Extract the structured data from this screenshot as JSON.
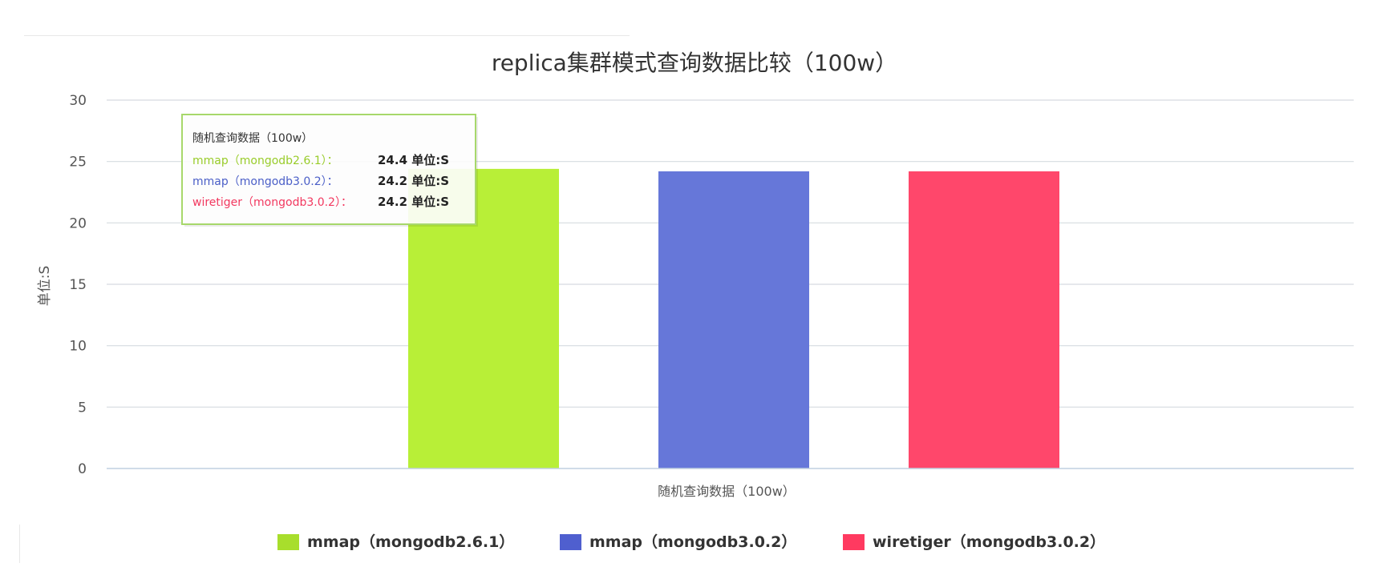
{
  "chart_data": {
    "type": "bar",
    "title": "replica集群模式查询数据比较（100w）",
    "ylabel": "单位:S",
    "xlabel": "",
    "categories": [
      "随机查询数据（100w）"
    ],
    "ylim": [
      0,
      30
    ],
    "yticks": [
      0,
      5,
      10,
      15,
      20,
      25,
      30
    ],
    "grid": true,
    "legend_position": "bottom-center",
    "series": [
      {
        "name": "mmap（mongodb2.6.1）",
        "values": [
          24.4
        ],
        "color": "#b8ef37",
        "legend_color": "#a8de2c"
      },
      {
        "name": "mmap（mongodb3.0.2）",
        "values": [
          24.2
        ],
        "color": "#6677d9",
        "legend_color": "#4f5fcf"
      },
      {
        "name": "wiretiger（mongodb3.0.2）",
        "values": [
          24.2
        ],
        "color": "#ff476b",
        "legend_color": "#ff3a60"
      }
    ],
    "tooltip": {
      "header": "随机查询数据（100w）",
      "unit_suffix": " 单位:S",
      "rows": [
        {
          "label": "mmap（mongodb2.6.1）：",
          "value": "24.4",
          "color": "#99cc2a"
        },
        {
          "label": "mmap（mongodb3.0.2）：",
          "value": "24.2",
          "color": "#4a5ec7"
        },
        {
          "label": "wiretiger（mongodb3.0.2）：",
          "value": "24.2",
          "color": "#f2385f"
        }
      ],
      "border_color": "#a7d86b"
    }
  }
}
